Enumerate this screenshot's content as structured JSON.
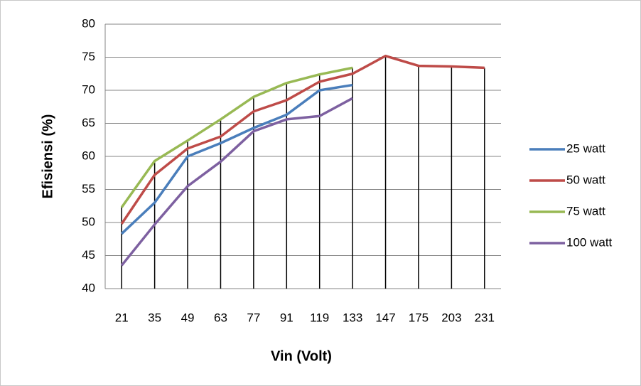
{
  "chart_data": {
    "type": "line",
    "x_label": "Vin (Volt)",
    "y_label": "Efisiensi (%)",
    "categories": [
      "21",
      "35",
      "49",
      "63",
      "77",
      "91",
      "119",
      "133",
      "147",
      "175",
      "203",
      "231"
    ],
    "series": [
      {
        "name": "25 watt",
        "color": "#4a7ebb",
        "values": [
          48.3,
          53,
          60,
          62,
          64.3,
          66.3,
          70,
          70.8,
          null,
          null,
          null,
          null
        ]
      },
      {
        "name": "50 watt",
        "color": "#be4b48",
        "values": [
          49.8,
          57.2,
          61.2,
          63,
          66.8,
          68.5,
          71.3,
          72.5,
          75.2,
          73.7,
          73.6,
          73.4
        ]
      },
      {
        "name": "75 watt",
        "color": "#98b954",
        "values": [
          52.3,
          59.3,
          62.4,
          65.6,
          69,
          71.1,
          72.4,
          73.4,
          null,
          null,
          null,
          null
        ]
      },
      {
        "name": "100 watt",
        "color": "#7d60a0",
        "values": [
          43.5,
          49.7,
          55.5,
          59.2,
          63.8,
          65.6,
          66.1,
          68.8,
          null,
          null,
          null,
          null
        ]
      }
    ],
    "ylim": [
      40,
      80
    ],
    "yticks": [
      40,
      45,
      50,
      55,
      60,
      65,
      70,
      75,
      80
    ],
    "grid": true,
    "drop_lines": true,
    "legend": "right"
  }
}
